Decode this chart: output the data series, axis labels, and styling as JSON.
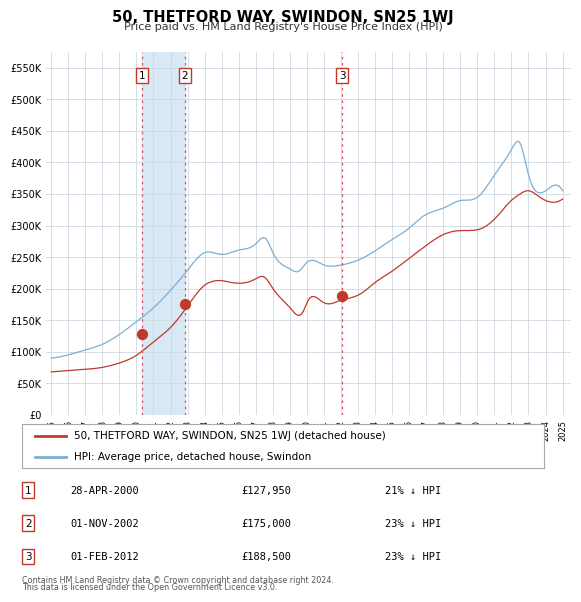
{
  "title": "50, THETFORD WAY, SWINDON, SN25 1WJ",
  "subtitle": "Price paid vs. HM Land Registry's House Price Index (HPI)",
  "legend_line1": "50, THETFORD WAY, SWINDON, SN25 1WJ (detached house)",
  "legend_line2": "HPI: Average price, detached house, Swindon",
  "footnote1": "Contains HM Land Registry data © Crown copyright and database right 2024.",
  "footnote2": "This data is licensed under the Open Government Licence v3.0.",
  "transactions": [
    {
      "num": 1,
      "date": "2000-04-28",
      "label": "28-APR-2000",
      "price": 127950,
      "price_label": "£127,950",
      "pct": "21% ↓ HPI",
      "x_year": 2000.32
    },
    {
      "num": 2,
      "date": "2002-11-01",
      "label": "01-NOV-2002",
      "price": 175000,
      "price_label": "£175,000",
      "pct": "23% ↓ HPI",
      "x_year": 2002.83
    },
    {
      "num": 3,
      "date": "2012-02-01",
      "label": "01-FEB-2012",
      "price": 188500,
      "price_label": "£188,500",
      "pct": "23% ↓ HPI",
      "x_year": 2012.08
    }
  ],
  "hpi_color": "#7bafd4",
  "price_color": "#c0392b",
  "vline_color": "#e05060",
  "shade_color": "#d8e8f5",
  "background_color": "#ffffff",
  "grid_color": "#d0d8e0",
  "ylim": [
    0,
    575000
  ],
  "yticks": [
    0,
    50000,
    100000,
    150000,
    200000,
    250000,
    300000,
    350000,
    400000,
    450000,
    500000,
    550000
  ],
  "ytick_labels": [
    "£0",
    "£50K",
    "£100K",
    "£150K",
    "£200K",
    "£250K",
    "£300K",
    "£350K",
    "£400K",
    "£450K",
    "£500K",
    "£550K"
  ],
  "xlim_start": 1994.7,
  "xlim_end": 2025.5
}
